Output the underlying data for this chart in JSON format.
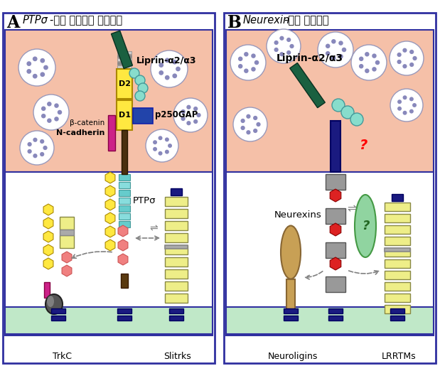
{
  "fig_width": 6.19,
  "fig_height": 5.15,
  "dpi": 100,
  "label_liprin_A": "Liprin-α2/α3",
  "label_liprin_B": "Liprin-α2/α3",
  "label_p250GAP": "p250GAP",
  "label_beta_catenin": "β-catenin",
  "label_N_cadherin": "N-cadherin",
  "label_PTPsigma": "PTPσ",
  "label_TrkC": "TrkC",
  "label_Slitrks": "Slitrks",
  "label_Neurexins": "Neurexins",
  "label_Neuroligins": "Neuroligins",
  "label_LRRTMs": "LRRTMs",
  "label_D1": "D1",
  "label_D2": "D2",
  "color_bg_presynaptic": "#F5C0A8",
  "color_bg_membrane": "#C0E8C8",
  "color_border": "#3030A0",
  "color_yellow_protein": "#FFE840",
  "color_teal_protein": "#66CCCC",
  "color_dark_green": "#1A6040",
  "color_blue_dark": "#1A1A80",
  "color_magenta": "#CC2288",
  "color_pink_hexagons": "#F08080",
  "color_red_hexagons": "#DD2222",
  "color_tan": "#C8A878",
  "color_light_teal_circles": "#88DDCC",
  "color_p250GAP_blue": "#2244AA",
  "color_lrr_yellow": "#EEEE88",
  "color_lrr_gray": "#AAAAAA"
}
